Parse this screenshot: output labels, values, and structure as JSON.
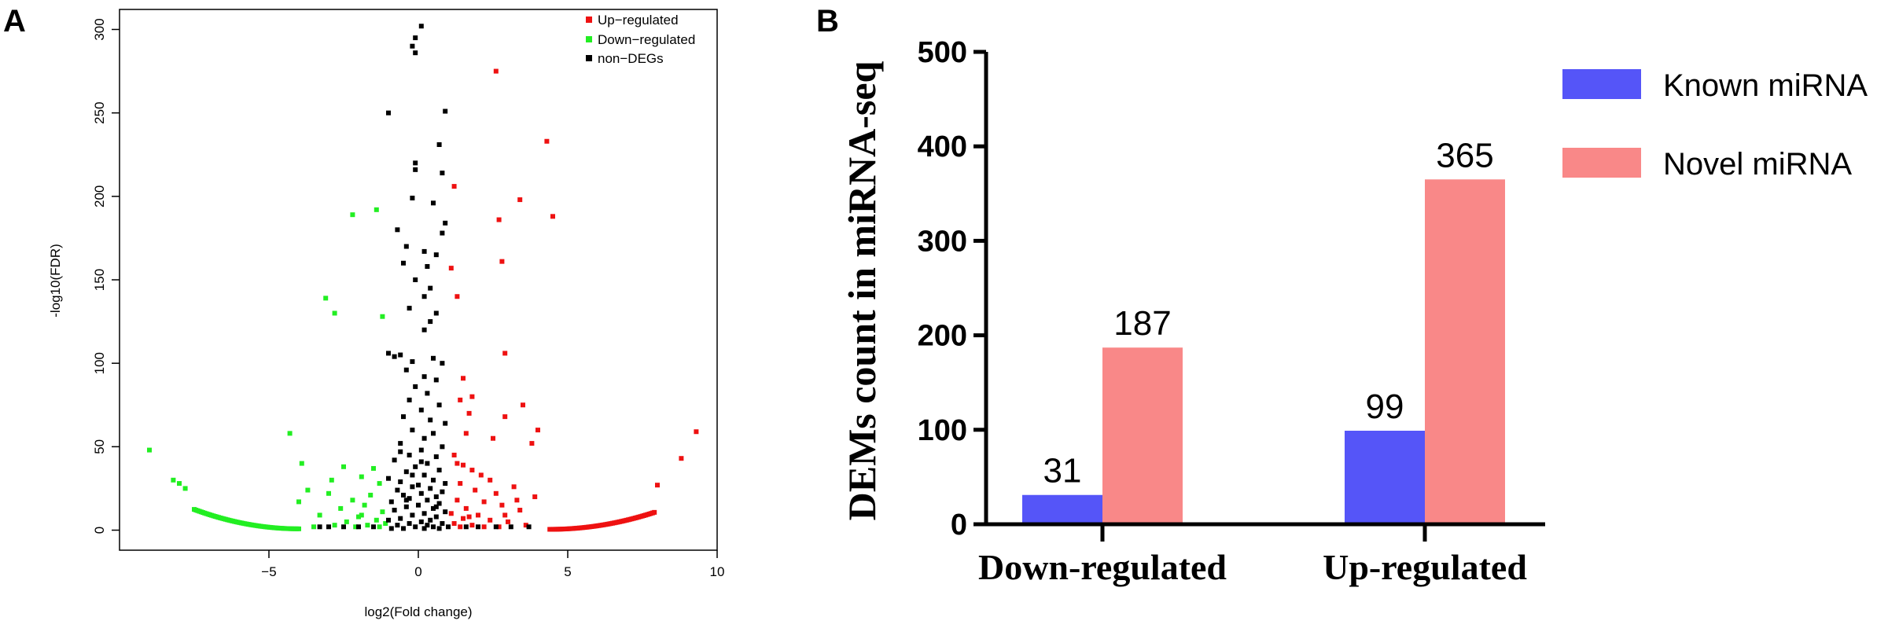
{
  "panels": {
    "a": "A",
    "b": "B"
  },
  "chart_data": [
    {
      "type": "scatter",
      "panel": "A",
      "xlabel": "log2(Fold change)",
      "ylabel": "-log10(FDR)",
      "xlim": [
        -10,
        10
      ],
      "ylim": [
        -12,
        312
      ],
      "xticks": [
        -5,
        0,
        5,
        10
      ],
      "xtick_labels": [
        "−5",
        "0",
        "5",
        "10"
      ],
      "yticks": [
        0,
        50,
        100,
        150,
        200,
        250,
        300
      ],
      "ytick_labels": [
        "0",
        "50",
        "100",
        "150",
        "200",
        "250",
        "300"
      ],
      "legend": {
        "position": "top-right",
        "entries": [
          {
            "key": "up",
            "label": "Up−regulated",
            "color": "#ee1111"
          },
          {
            "key": "down",
            "label": "Down−regulated",
            "color": "#22ee22"
          },
          {
            "key": "nondeg",
            "label": "non−DEGs",
            "color": "#000000"
          }
        ]
      },
      "series": [
        {
          "name": "Up-regulated",
          "color": "#ee1111",
          "points": [
            [
              2.6,
              275
            ],
            [
              4.3,
              233
            ],
            [
              1.2,
              206
            ],
            [
              3.4,
              198
            ],
            [
              4.5,
              188
            ],
            [
              2.7,
              186
            ],
            [
              2.8,
              161
            ],
            [
              1.1,
              157
            ],
            [
              1.3,
              140
            ],
            [
              2.9,
              106
            ],
            [
              1.5,
              91
            ],
            [
              1.8,
              80
            ],
            [
              1.4,
              78
            ],
            [
              3.5,
              75
            ],
            [
              1.7,
              70
            ],
            [
              2.9,
              68
            ],
            [
              4.0,
              60
            ],
            [
              1.6,
              58
            ],
            [
              2.5,
              55
            ],
            [
              3.8,
              52
            ],
            [
              1.2,
              45
            ],
            [
              1.3,
              40
            ],
            [
              1.5,
              39
            ],
            [
              1.8,
              36
            ],
            [
              2.1,
              33
            ],
            [
              2.4,
              30
            ],
            [
              1.4,
              28
            ],
            [
              3.2,
              26
            ],
            [
              1.9,
              24
            ],
            [
              2.6,
              22
            ],
            [
              3.9,
              20
            ],
            [
              1.3,
              18
            ],
            [
              2.2,
              17
            ],
            [
              2.8,
              15
            ],
            [
              1.6,
              13
            ],
            [
              3.4,
              12
            ],
            [
              1.1,
              10
            ],
            [
              2.0,
              9
            ],
            [
              1.5,
              7
            ],
            [
              2.4,
              6
            ],
            [
              3.0,
              5
            ],
            [
              1.2,
              4
            ],
            [
              1.8,
              3
            ],
            [
              2.7,
              2
            ],
            [
              3.6,
              3
            ],
            [
              1.4,
              2
            ],
            [
              2.2,
              2
            ],
            [
              1.7,
              8
            ],
            [
              2.9,
              9
            ],
            [
              3.3,
              18
            ],
            [
              9.3,
              59
            ],
            [
              8.8,
              43
            ],
            [
              8.0,
              27
            ]
          ]
        },
        {
          "name": "Down-regulated",
          "color": "#22ee22",
          "points": [
            [
              -1.4,
              192
            ],
            [
              -2.2,
              189
            ],
            [
              -3.1,
              139
            ],
            [
              -2.8,
              130
            ],
            [
              -1.2,
              128
            ],
            [
              -4.3,
              58
            ],
            [
              -9.0,
              48
            ],
            [
              -3.9,
              40
            ],
            [
              -2.5,
              38
            ],
            [
              -1.5,
              37
            ],
            [
              -1.9,
              32
            ],
            [
              -2.9,
              30
            ],
            [
              -1.3,
              28
            ],
            [
              -8.2,
              30
            ],
            [
              -8.0,
              28
            ],
            [
              -7.8,
              25
            ],
            [
              -3.0,
              22
            ],
            [
              -1.6,
              21
            ],
            [
              -2.2,
              18
            ],
            [
              -4.0,
              17
            ],
            [
              -1.8,
              15
            ],
            [
              -2.6,
              13
            ],
            [
              -1.2,
              11
            ],
            [
              -3.3,
              9
            ],
            [
              -2.0,
              8
            ],
            [
              -1.4,
              6
            ],
            [
              -2.4,
              5
            ],
            [
              -1.1,
              4
            ],
            [
              -1.7,
              3
            ],
            [
              -2.8,
              3
            ],
            [
              -3.5,
              2
            ],
            [
              -1.3,
              2
            ],
            [
              -2.1,
              2
            ],
            [
              -1.9,
              9
            ],
            [
              -3.7,
              24
            ]
          ]
        },
        {
          "name": "non-DEGs",
          "color": "#000000",
          "points": [
            [
              0.1,
              302
            ],
            [
              -0.1,
              295
            ],
            [
              -0.2,
              290
            ],
            [
              -0.1,
              286
            ],
            [
              -1.0,
              250
            ],
            [
              0.9,
              251
            ],
            [
              0.7,
              231
            ],
            [
              -0.1,
              220
            ],
            [
              -0.1,
              216
            ],
            [
              0.8,
              214
            ],
            [
              -0.2,
              199
            ],
            [
              0.5,
              196
            ],
            [
              0.9,
              184
            ],
            [
              -0.7,
              180
            ],
            [
              0.8,
              178
            ],
            [
              -0.4,
              170
            ],
            [
              0.2,
              167
            ],
            [
              0.6,
              165
            ],
            [
              -0.5,
              160
            ],
            [
              0.3,
              158
            ],
            [
              -0.1,
              150
            ],
            [
              0.4,
              145
            ],
            [
              0.2,
              140
            ],
            [
              -0.3,
              133
            ],
            [
              0.6,
              130
            ],
            [
              0.4,
              125
            ],
            [
              0.2,
              120
            ],
            [
              -1.0,
              106
            ],
            [
              -0.6,
              105
            ],
            [
              -0.8,
              104
            ],
            [
              -0.2,
              101
            ],
            [
              0.5,
              103
            ],
            [
              0.8,
              100
            ],
            [
              -0.4,
              96
            ],
            [
              0.2,
              92
            ],
            [
              0.6,
              90
            ],
            [
              -0.1,
              86
            ],
            [
              0.3,
              82
            ],
            [
              -0.3,
              78
            ],
            [
              0.7,
              75
            ],
            [
              0.1,
              72
            ],
            [
              -0.5,
              68
            ],
            [
              0.4,
              66
            ],
            [
              0.9,
              64
            ],
            [
              -0.2,
              60
            ],
            [
              0.5,
              58
            ],
            [
              0.2,
              55
            ],
            [
              -0.6,
              52
            ],
            [
              0.8,
              50
            ],
            [
              0.1,
              48
            ],
            [
              -0.3,
              45
            ],
            [
              0.6,
              44
            ],
            [
              -0.8,
              42
            ],
            [
              0.3,
              40
            ],
            [
              -0.1,
              38
            ],
            [
              0.7,
              36
            ],
            [
              -0.4,
              35
            ],
            [
              0.2,
              33
            ],
            [
              -1.0,
              31
            ],
            [
              0.5,
              30
            ],
            [
              -0.6,
              29
            ],
            [
              0.9,
              28
            ],
            [
              0.0,
              27
            ],
            [
              -0.2,
              26
            ],
            [
              0.4,
              25
            ],
            [
              -0.7,
              24
            ],
            [
              0.8,
              23
            ],
            [
              0.1,
              22
            ],
            [
              -0.5,
              21
            ],
            [
              0.6,
              20
            ],
            [
              -0.3,
              19
            ],
            [
              0.3,
              18
            ],
            [
              -0.9,
              17
            ],
            [
              0.7,
              16
            ],
            [
              0.0,
              15
            ],
            [
              -0.4,
              14
            ],
            [
              0.5,
              13
            ],
            [
              -0.8,
              12
            ],
            [
              0.9,
              11
            ],
            [
              0.2,
              10
            ],
            [
              -0.2,
              9
            ],
            [
              0.6,
              8
            ],
            [
              -0.6,
              7
            ],
            [
              0.4,
              6
            ],
            [
              -1.0,
              6
            ],
            [
              0.1,
              5
            ],
            [
              0.8,
              4
            ],
            [
              -0.3,
              4
            ],
            [
              0.3,
              3
            ],
            [
              -0.7,
              3
            ],
            [
              1.0,
              2
            ],
            [
              -0.1,
              2
            ],
            [
              0.5,
              2
            ],
            [
              -0.5,
              1
            ],
            [
              0.2,
              1
            ],
            [
              -0.9,
              1
            ],
            [
              0.7,
              1
            ],
            [
              -1.5,
              2
            ],
            [
              -2.0,
              2
            ],
            [
              -2.5,
              2
            ],
            [
              -3.0,
              2
            ],
            [
              -3.3,
              2
            ],
            [
              1.6,
              2
            ],
            [
              2.0,
              2
            ],
            [
              2.6,
              2
            ],
            [
              3.1,
              2
            ],
            [
              3.7,
              2
            ],
            [
              -0.4,
              18
            ],
            [
              0.6,
              14
            ],
            [
              -0.2,
              33
            ],
            [
              0.1,
              41
            ],
            [
              -0.6,
              47
            ]
          ]
        }
      ],
      "curve_series": [
        {
          "name": "Up-regulated tail",
          "color": "#ee1111",
          "x_range": [
            4.4,
            7.9
          ],
          "formula": "y = 0.83 * (x - 4.4)^2 + 0.5"
        },
        {
          "name": "Down-regulated tail",
          "color": "#22ee22",
          "x_range": [
            -7.5,
            -4.0
          ],
          "formula": "y = 0.95 * (-4.0 - x)^2 + 0.8"
        }
      ]
    },
    {
      "type": "bar",
      "panel": "B",
      "categories": [
        "Down-regulated",
        "Up-regulated"
      ],
      "series": [
        {
          "name": "Known miRNA",
          "color": "#5555f8",
          "values": [
            31,
            99
          ]
        },
        {
          "name": "Novel miRNA",
          "color": "#f98888",
          "values": [
            187,
            365
          ]
        }
      ],
      "ylabel": "DEMs count in miRNA-seq",
      "ylim": [
        0,
        500
      ],
      "yticks": [
        0,
        100,
        200,
        300,
        400,
        500
      ],
      "legend": {
        "position": "top-right"
      }
    }
  ]
}
